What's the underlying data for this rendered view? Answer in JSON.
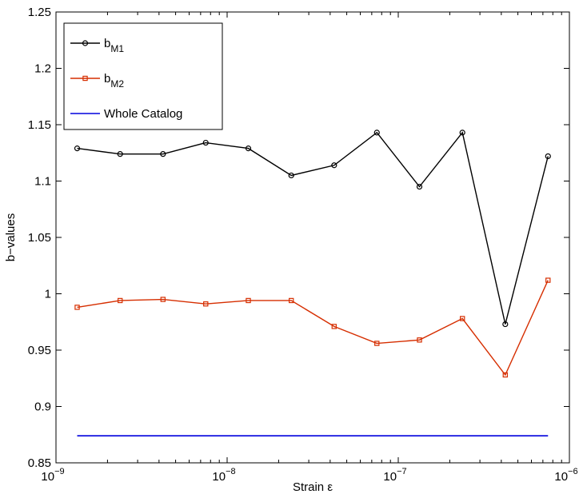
{
  "chart_data": {
    "type": "line",
    "title": "",
    "xlabel": "Strain ε",
    "ylabel": "b−values",
    "xscale": "log",
    "xlim": [
      1e-09,
      1e-06
    ],
    "ylim": [
      0.85,
      1.25
    ],
    "grid": false,
    "legend_position": "top-left",
    "x_ticks": [
      {
        "value": 1e-09,
        "base": "10",
        "exp": "−9"
      },
      {
        "value": 1e-08,
        "base": "10",
        "exp": "−8"
      },
      {
        "value": 1e-07,
        "base": "10",
        "exp": "−7"
      },
      {
        "value": 1e-06,
        "base": "10",
        "exp": "−6"
      }
    ],
    "y_ticks": [
      {
        "value": 0.85,
        "label": "0.85"
      },
      {
        "value": 0.9,
        "label": "0.9"
      },
      {
        "value": 0.95,
        "label": "0.95"
      },
      {
        "value": 1.0,
        "label": "1"
      },
      {
        "value": 1.05,
        "label": "1.05"
      },
      {
        "value": 1.1,
        "label": "1.1"
      },
      {
        "value": 1.15,
        "label": "1.15"
      },
      {
        "value": 1.2,
        "label": "1.2"
      },
      {
        "value": 1.25,
        "label": "1.25"
      }
    ],
    "x": [
      1.33e-09,
      2.37e-09,
      4.22e-09,
      7.5e-09,
      1.33e-08,
      2.37e-08,
      4.22e-08,
      7.5e-08,
      1.33e-07,
      2.37e-07,
      4.22e-07,
      7.5e-07
    ],
    "series": [
      {
        "name": "b",
        "name_sub": "M1",
        "color": "#000000",
        "marker": "circle",
        "values": [
          1.129,
          1.124,
          1.124,
          1.134,
          1.129,
          1.105,
          1.114,
          1.143,
          1.095,
          1.143,
          0.973,
          1.122
        ]
      },
      {
        "name": "b",
        "name_sub": "M2",
        "color": "#d62e00",
        "marker": "square",
        "values": [
          0.988,
          0.994,
          0.995,
          0.991,
          0.994,
          0.994,
          0.971,
          0.956,
          0.959,
          0.978,
          0.928,
          1.012
        ]
      },
      {
        "name": "Whole Catalog",
        "name_sub": "",
        "color": "#0000dd",
        "marker": "none",
        "x_range": [
          1.33e-09,
          7.5e-07
        ],
        "constant": 0.874
      }
    ]
  }
}
